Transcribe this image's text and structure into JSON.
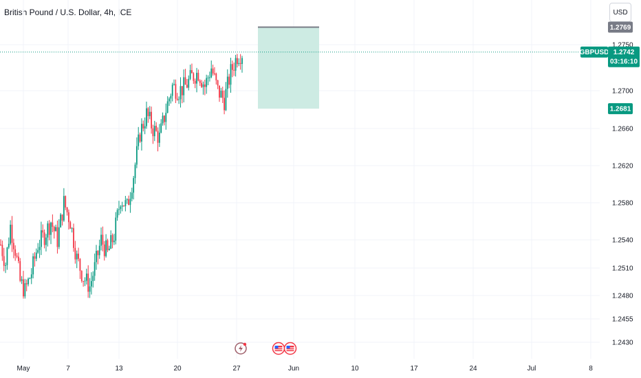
{
  "header": {
    "title": "British Pound / U.S. Dollar, 4h, ICE",
    "currency_button": "USD"
  },
  "colors": {
    "up": "#089981",
    "down": "#f23645",
    "target_zone": "#cdebe3",
    "grid": "#f0f3fa",
    "price_line": "#089981",
    "target_tag": "#787b86"
  },
  "chart_data": {
    "type": "candlestick",
    "symbol": "GBPUSD",
    "timeframe": "4h",
    "x_tick_labels": [
      "May",
      "7",
      "13",
      "20",
      "27",
      "Jun",
      "10",
      "17",
      "24",
      "Jul",
      "8"
    ],
    "y_tick_labels": [
      "1.2750",
      "1.2700",
      "1.2660",
      "1.2620",
      "1.2580",
      "1.2540",
      "1.2510",
      "1.2480",
      "1.2455",
      "1.2430"
    ],
    "y_tick_values": [
      1.275,
      1.27,
      1.266,
      1.262,
      1.258,
      1.254,
      1.251,
      1.248,
      1.2455,
      1.243
    ],
    "current_price": {
      "label": "GBPUSD",
      "value": "1.2742",
      "countdown": "03:16:10"
    },
    "target_price": {
      "value": "1.2769"
    },
    "stop_price": {
      "value": "1.2681"
    },
    "position_zone": {
      "start": "May 29",
      "end": "Jun 5",
      "top": 1.2769,
      "bottom": 1.2681
    },
    "event_icons": [
      "lightning-icon",
      "us-flag-icon",
      "us-flag-icon"
    ],
    "grid": true,
    "approx_price_path": [
      [
        0,
        1.2535
      ],
      [
        3,
        1.2515
      ],
      [
        6,
        1.2555
      ],
      [
        9,
        1.253
      ],
      [
        12,
        1.2495
      ],
      [
        15,
        1.2485
      ],
      [
        19,
        1.2505
      ],
      [
        23,
        1.2535
      ],
      [
        27,
        1.2545
      ],
      [
        31,
        1.256
      ],
      [
        35,
        1.254
      ],
      [
        39,
        1.258
      ],
      [
        43,
        1.256
      ],
      [
        47,
        1.252
      ],
      [
        51,
        1.25
      ],
      [
        55,
        1.249
      ],
      [
        58,
        1.251
      ],
      [
        62,
        1.254
      ],
      [
        66,
        1.2525
      ],
      [
        70,
        1.2545
      ],
      [
        74,
        1.2585
      ],
      [
        78,
        1.2575
      ],
      [
        82,
        1.261
      ],
      [
        86,
        1.2655
      ],
      [
        90,
        1.2675
      ],
      [
        94,
        1.266
      ],
      [
        98,
        1.265
      ],
      [
        102,
        1.268
      ],
      [
        106,
        1.2705
      ],
      [
        110,
        1.27
      ],
      [
        114,
        1.2705
      ],
      [
        118,
        1.2715
      ],
      [
        122,
        1.272
      ],
      [
        126,
        1.2705
      ],
      [
        130,
        1.2725
      ],
      [
        134,
        1.27
      ],
      [
        138,
        1.269
      ],
      [
        142,
        1.272
      ],
      [
        146,
        1.2738
      ],
      [
        150,
        1.2742
      ]
    ]
  }
}
